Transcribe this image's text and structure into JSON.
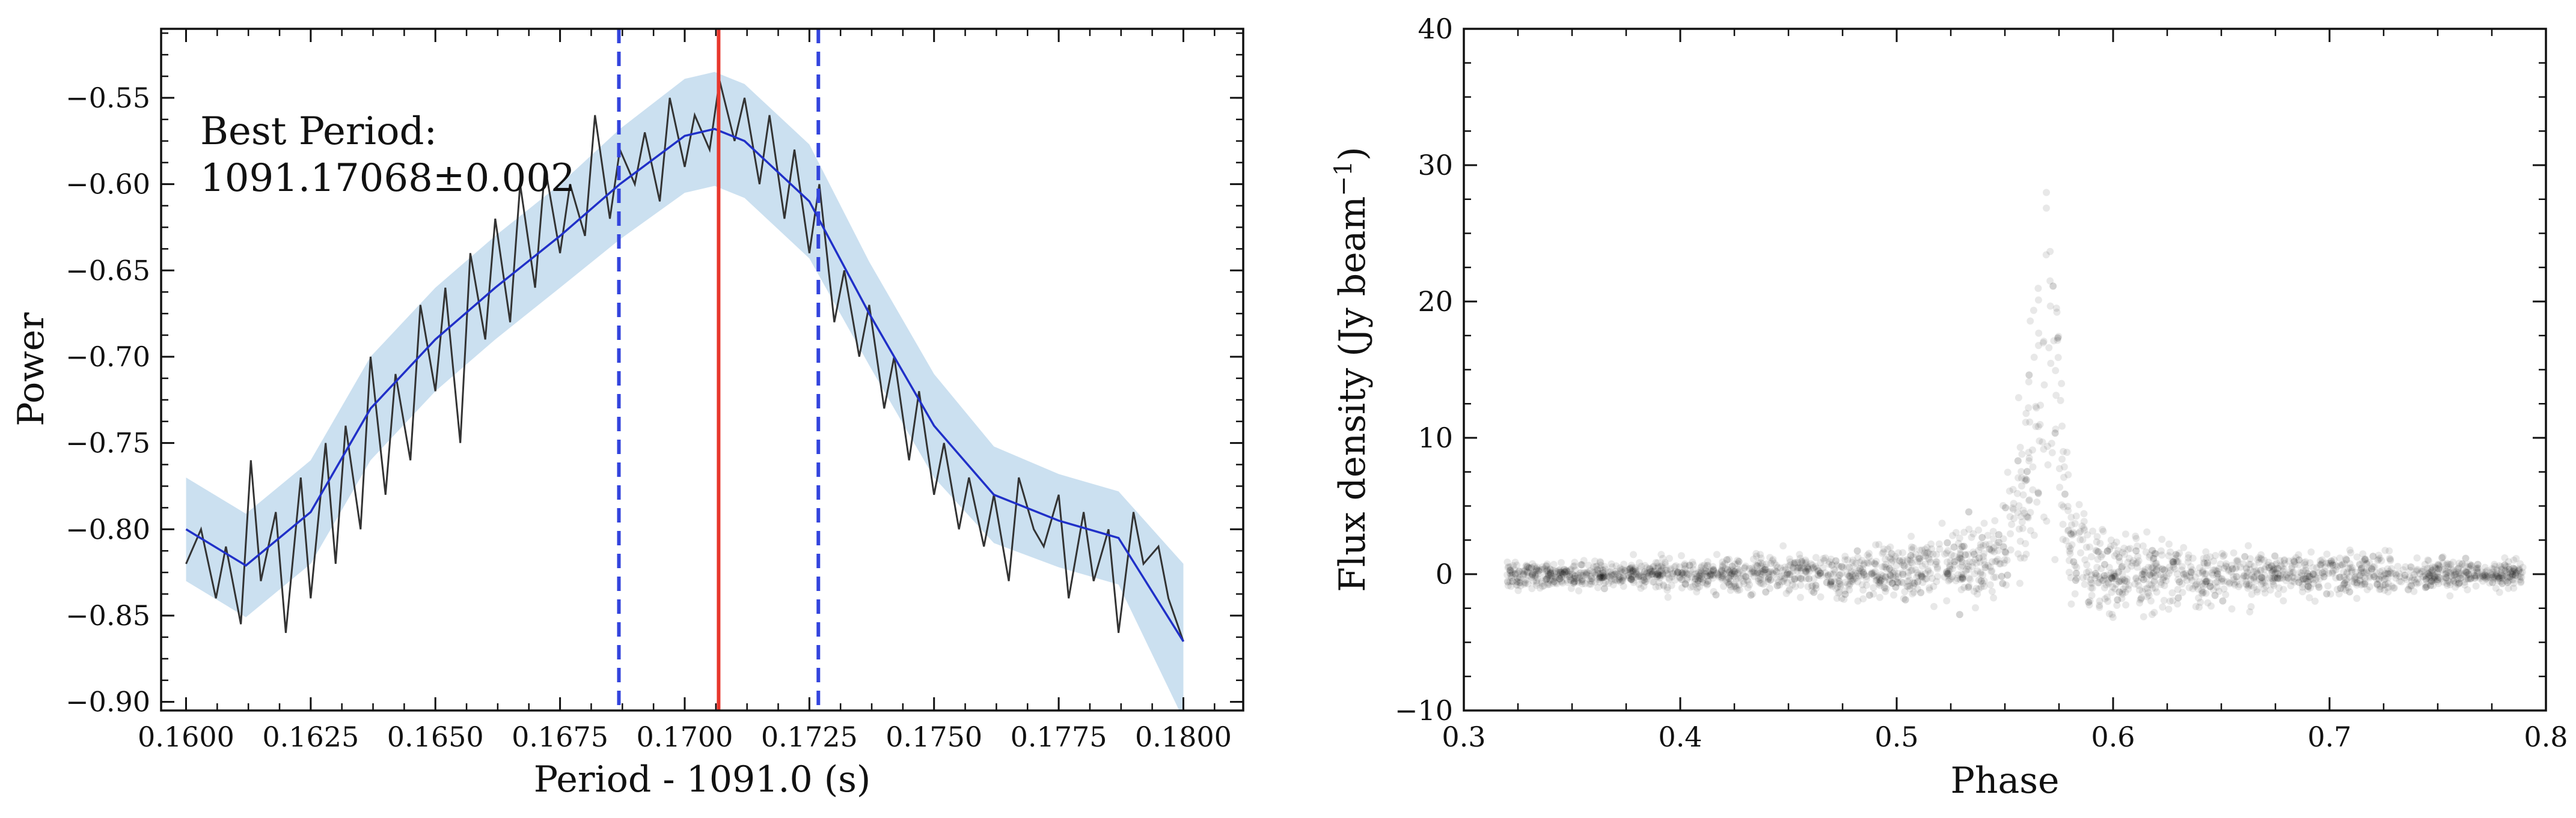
{
  "chart_data": [
    {
      "type": "line",
      "xlabel": "Period - 1091.0 (s)",
      "ylabel": "Power",
      "xlim": [
        0.1595,
        0.1812
      ],
      "ylim": [
        -0.905,
        -0.51
      ],
      "x_ticks": [
        0.16,
        0.1625,
        0.165,
        0.1675,
        0.17,
        0.1725,
        0.175,
        0.1775,
        0.18
      ],
      "x_tick_labels": [
        "0.1600",
        "0.1625",
        "0.1650",
        "0.1675",
        "0.1700",
        "0.1725",
        "0.1750",
        "0.1775",
        "0.1800"
      ],
      "y_ticks": [
        -0.9,
        -0.85,
        -0.8,
        -0.75,
        -0.7,
        -0.65,
        -0.6,
        -0.55
      ],
      "y_tick_labels": [
        "−0.90",
        "−0.85",
        "−0.80",
        "−0.75",
        "−0.70",
        "−0.65",
        "−0.60",
        "−0.55"
      ],
      "annotation": [
        "Best Period:",
        "1091.17068±0.002"
      ],
      "best_period_offset": 0.17068,
      "uncertainty_bounds": [
        0.16868,
        0.17268
      ],
      "colors": {
        "raw": "#333333",
        "smooth": "#2030c8",
        "band": "#c2dbed",
        "best": "#e8372c",
        "bounds": "#3344dd"
      },
      "series": [
        {
          "x": [
            0.16,
            0.1612,
            0.1625,
            0.1637,
            0.165,
            0.1662,
            0.1675,
            0.1687,
            0.17,
            0.1706,
            0.1712,
            0.1725,
            0.1737,
            0.175,
            0.1762,
            0.1775,
            0.1787,
            0.18
          ],
          "y": [
            -0.8,
            -0.821,
            -0.79,
            -0.73,
            -0.69,
            -0.66,
            -0.63,
            -0.6,
            -0.572,
            -0.568,
            -0.575,
            -0.61,
            -0.675,
            -0.74,
            -0.78,
            -0.795,
            -0.805,
            -0.865
          ],
          "band_half_width": [
            0.03,
            0.03,
            0.03,
            0.03,
            0.03,
            0.03,
            0.03,
            0.032,
            0.033,
            0.033,
            0.033,
            0.033,
            0.03,
            0.03,
            0.028,
            0.027,
            0.027,
            0.045
          ]
        },
        {
          "x": [
            0.16,
            0.1603,
            0.1606,
            0.1608,
            0.1611,
            0.1613,
            0.1615,
            0.1618,
            0.162,
            0.1623,
            0.1625,
            0.1628,
            0.163,
            0.1632,
            0.1635,
            0.1637,
            0.164,
            0.1642,
            0.1645,
            0.1647,
            0.165,
            0.1652,
            0.1655,
            0.1657,
            0.166,
            0.1662,
            0.1665,
            0.1667,
            0.167,
            0.1672,
            0.1675,
            0.1677,
            0.168,
            0.1682,
            0.1685,
            0.1687,
            0.169,
            0.1692,
            0.1695,
            0.1697,
            0.17,
            0.1702,
            0.1705,
            0.1707,
            0.171,
            0.1712,
            0.1715,
            0.1717,
            0.172,
            0.1722,
            0.1725,
            0.1727,
            0.173,
            0.1732,
            0.1735,
            0.1737,
            0.174,
            0.1742,
            0.1745,
            0.1747,
            0.175,
            0.1752,
            0.1755,
            0.1757,
            0.176,
            0.1762,
            0.1765,
            0.1767,
            0.177,
            0.1772,
            0.1775,
            0.1777,
            0.178,
            0.1782,
            0.1785,
            0.1787,
            0.179,
            0.1792,
            0.1795,
            0.1797,
            0.18
          ],
          "y": [
            -0.82,
            -0.8,
            -0.84,
            -0.81,
            -0.855,
            -0.76,
            -0.83,
            -0.79,
            -0.86,
            -0.77,
            -0.84,
            -0.75,
            -0.82,
            -0.74,
            -0.8,
            -0.7,
            -0.78,
            -0.71,
            -0.76,
            -0.67,
            -0.72,
            -0.66,
            -0.75,
            -0.64,
            -0.69,
            -0.62,
            -0.68,
            -0.6,
            -0.66,
            -0.59,
            -0.64,
            -0.6,
            -0.63,
            -0.56,
            -0.62,
            -0.58,
            -0.6,
            -0.57,
            -0.61,
            -0.55,
            -0.59,
            -0.56,
            -0.58,
            -0.54,
            -0.575,
            -0.55,
            -0.6,
            -0.56,
            -0.62,
            -0.58,
            -0.64,
            -0.6,
            -0.68,
            -0.65,
            -0.7,
            -0.67,
            -0.73,
            -0.7,
            -0.76,
            -0.72,
            -0.78,
            -0.75,
            -0.8,
            -0.77,
            -0.81,
            -0.78,
            -0.83,
            -0.77,
            -0.8,
            -0.81,
            -0.78,
            -0.84,
            -0.79,
            -0.83,
            -0.8,
            -0.86,
            -0.79,
            -0.82,
            -0.81,
            -0.84,
            -0.865
          ]
        }
      ]
    },
    {
      "type": "scatter",
      "xlabel": "Phase",
      "ylabel": "Flux density (Jy beam",
      "ylabel_superscript": "−1",
      "ylabel_close": ")",
      "xlim": [
        0.3,
        0.8
      ],
      "ylim": [
        -10,
        40
      ],
      "x_ticks": [
        0.3,
        0.4,
        0.5,
        0.6,
        0.7,
        0.8
      ],
      "x_tick_labels": [
        "0.3",
        "0.4",
        "0.5",
        "0.6",
        "0.7",
        "0.8"
      ],
      "y_ticks": [
        -10,
        0,
        10,
        20,
        30,
        40
      ],
      "y_tick_labels": [
        "−10",
        "0",
        "10",
        "20",
        "30",
        "40"
      ],
      "colors": {
        "points": "#000000"
      },
      "series": [
        {
          "x": [
            0.32,
            0.35,
            0.4,
            0.45,
            0.5,
            0.52,
            0.54,
            0.55,
            0.56,
            0.565,
            0.57,
            0.575,
            0.58,
            0.59,
            0.6,
            0.62,
            0.65,
            0.7,
            0.75,
            0.79
          ],
          "y": [
            0.0,
            0.0,
            0.0,
            0.0,
            0.1,
            0.3,
            0.8,
            3.0,
            8.0,
            18.0,
            25.0,
            15.0,
            2.0,
            0.5,
            0.0,
            0.0,
            0.0,
            0.0,
            0.0,
            0.0
          ],
          "spread": [
            1.2,
            1.2,
            1.4,
            1.8,
            2.5,
            3.0,
            3.8,
            4.5,
            6.0,
            7.5,
            8.0,
            7.0,
            5.0,
            4.0,
            3.5,
            3.0,
            2.5,
            2.0,
            1.5,
            1.2
          ]
        }
      ]
    }
  ]
}
